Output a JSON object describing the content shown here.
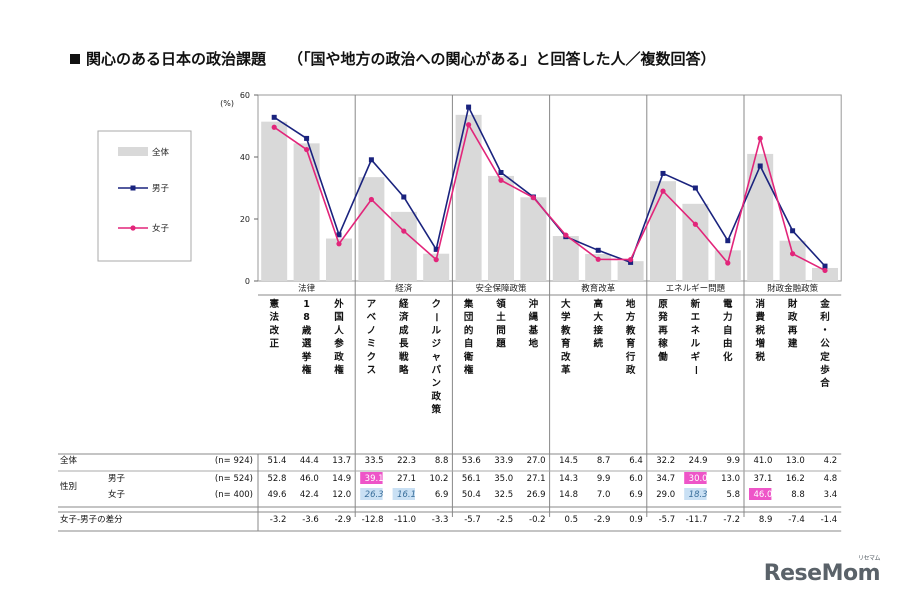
{
  "title": {
    "main": "関心のある日本の政治課題",
    "sub": "（「国や地方の政治への関心がある」と回答した人／複数回答）"
  },
  "logo": {
    "text": "ReseMom",
    "kana": "リセマム"
  },
  "colors": {
    "all_bar": "#d9d9d9",
    "boys": "#1a237e",
    "girls": "#e2257a",
    "highlight_pink": "#ee55c8",
    "highlight_blue": "#c9e0f4"
  },
  "chart_data": {
    "type": "bar",
    "y_unit": "(%)",
    "ylim": [
      0,
      60
    ],
    "yticks": [
      0,
      20,
      40,
      60
    ],
    "legend": {
      "all": "全体",
      "boys": "男子",
      "girls": "女子"
    },
    "groups": [
      {
        "name": "法律",
        "count": 3
      },
      {
        "name": "経済",
        "count": 3
      },
      {
        "name": "安全保障政策",
        "count": 3
      },
      {
        "name": "教育改革",
        "count": 3
      },
      {
        "name": "エネルギー問題",
        "count": 3
      },
      {
        "name": "財政金融政策",
        "count": 3
      }
    ],
    "categories": [
      "憲法改正",
      "18歳選挙権",
      "外国人参政権",
      "アベノミクス",
      "経済成長戦略",
      "クールジャパン政策",
      "集団的自衛権",
      "領土問題",
      "沖縄基地",
      "大学教育改革",
      "高大接続",
      "地方教育行政",
      "原発再稼働",
      "新エネルギー",
      "電力自由化",
      "消費税増税",
      "財政再建",
      "金利・公定歩合"
    ],
    "series": [
      {
        "name": "全体",
        "values": [
          51.4,
          44.4,
          13.7,
          33.5,
          22.3,
          8.8,
          53.6,
          33.9,
          27.0,
          14.5,
          8.7,
          6.4,
          32.2,
          24.9,
          9.9,
          41.0,
          13.0,
          4.2
        ]
      },
      {
        "name": "男子",
        "values": [
          52.8,
          46.0,
          14.9,
          39.1,
          27.1,
          10.2,
          56.1,
          35.0,
          27.1,
          14.3,
          9.9,
          6.0,
          34.7,
          30.0,
          13.0,
          37.1,
          16.2,
          4.8
        ]
      },
      {
        "name": "女子",
        "values": [
          49.6,
          42.4,
          12.0,
          26.3,
          16.1,
          6.9,
          50.4,
          32.5,
          26.9,
          14.8,
          7.0,
          6.9,
          29.0,
          18.3,
          5.8,
          46.0,
          8.8,
          3.4
        ]
      }
    ],
    "table": {
      "rows": [
        {
          "label": "全体",
          "n": "(n=  924)",
          "values": [
            "51.4",
            "44.4",
            "13.7",
            "33.5",
            "22.3",
            "8.8",
            "53.6",
            "33.9",
            "27.0",
            "14.5",
            "8.7",
            "6.4",
            "32.2",
            "24.9",
            "9.9",
            "41.0",
            "13.0",
            "4.2"
          ]
        },
        {
          "group_label": "性別",
          "label": "男子",
          "n": "(n=  524)",
          "values": [
            "52.8",
            "46.0",
            "14.9",
            "39.1",
            "27.1",
            "10.2",
            "56.1",
            "35.0",
            "27.1",
            "14.3",
            "9.9",
            "6.0",
            "34.7",
            "30.0",
            "13.0",
            "37.1",
            "16.2",
            "4.8"
          ],
          "highlight": {
            "3": "pink",
            "13": "pink"
          }
        },
        {
          "label": "女子",
          "n": "(n=  400)",
          "values": [
            "49.6",
            "42.4",
            "12.0",
            "26.3",
            "16.1",
            "6.9",
            "50.4",
            "32.5",
            "26.9",
            "14.8",
            "7.0",
            "6.9",
            "29.0",
            "18.3",
            "5.8",
            "46.0",
            "8.8",
            "3.4"
          ],
          "highlight": {
            "3": "blue",
            "4": "blue",
            "13": "blue",
            "15": "pink"
          }
        },
        {
          "label": "女子-男子の差分",
          "n": "",
          "values": [
            "-3.2",
            "-3.6",
            "-2.9",
            "-12.8",
            "-11.0",
            "-3.3",
            "-5.7",
            "-2.5",
            "-0.2",
            "0.5",
            "-2.9",
            "0.9",
            "-5.7",
            "-11.7",
            "-7.2",
            "8.9",
            "-7.4",
            "-1.4"
          ]
        }
      ]
    }
  }
}
